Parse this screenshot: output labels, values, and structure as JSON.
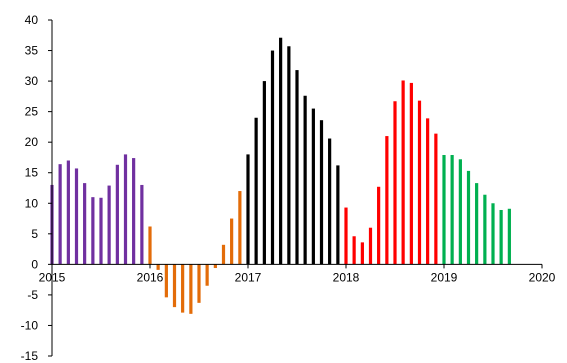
{
  "chart_data": {
    "type": "bar",
    "title": "",
    "xlabel": "",
    "ylabel": "",
    "ylim": [
      -15,
      40
    ],
    "y_ticks": [
      -15,
      -10,
      -5,
      0,
      5,
      10,
      15,
      20,
      25,
      30,
      35,
      40
    ],
    "y_tick_labels": [
      "-15",
      "-10",
      "-5",
      "0",
      "5",
      "10",
      "15",
      "20",
      "25",
      "30",
      "35",
      "40"
    ],
    "xlim": [
      2015,
      2020
    ],
    "x_ticks": [
      2015,
      2016,
      2017,
      2018,
      2019,
      2020
    ],
    "x_tick_labels": [
      "2015",
      "2016",
      "2017",
      "2018",
      "2019",
      "2020"
    ],
    "grid": false,
    "legend": "none",
    "series": [
      {
        "color": "#7030a0",
        "x": [
          2015.0,
          2015.083,
          2015.167,
          2015.25,
          2015.333,
          2015.417,
          2015.5,
          2015.583,
          2015.667,
          2015.75,
          2015.833,
          2015.917
        ],
        "values": [
          13.0,
          16.4,
          17.0,
          15.7,
          13.3,
          11.0,
          10.9,
          12.9,
          16.3,
          18.0,
          17.4,
          13.0
        ]
      },
      {
        "color": "#e36c09",
        "x": [
          2016.0,
          2016.083,
          2016.167,
          2016.25,
          2016.333,
          2016.417,
          2016.5,
          2016.583,
          2016.667,
          2016.75,
          2016.833,
          2016.917
        ],
        "values": [
          6.2,
          -0.9,
          -5.4,
          -7.0,
          -7.9,
          -8.1,
          -6.3,
          -3.5,
          -0.6,
          3.2,
          7.5,
          12.0
        ]
      },
      {
        "color": "#000000",
        "x": [
          2017.0,
          2017.083,
          2017.167,
          2017.25,
          2017.333,
          2017.417,
          2017.5,
          2017.583,
          2017.667,
          2017.75,
          2017.833,
          2017.917
        ],
        "values": [
          18.0,
          24.0,
          30.0,
          35.0,
          37.1,
          35.7,
          31.8,
          27.6,
          25.5,
          23.6,
          20.6,
          16.2
        ]
      },
      {
        "color": "#ff0000",
        "x": [
          2018.0,
          2018.083,
          2018.167,
          2018.25,
          2018.333,
          2018.417,
          2018.5,
          2018.583,
          2018.667,
          2018.75,
          2018.833,
          2018.917
        ],
        "values": [
          9.3,
          4.6,
          3.6,
          6.0,
          12.7,
          21.0,
          26.7,
          30.1,
          29.7,
          26.8,
          23.9,
          21.4
        ]
      },
      {
        "color": "#00b050",
        "x": [
          2019.0,
          2019.083,
          2019.167,
          2019.25,
          2019.333,
          2019.417,
          2019.5,
          2019.583,
          2019.667
        ],
        "values": [
          17.9,
          17.9,
          17.2,
          15.3,
          13.3,
          11.4,
          10.0,
          8.9,
          9.1
        ]
      }
    ]
  }
}
